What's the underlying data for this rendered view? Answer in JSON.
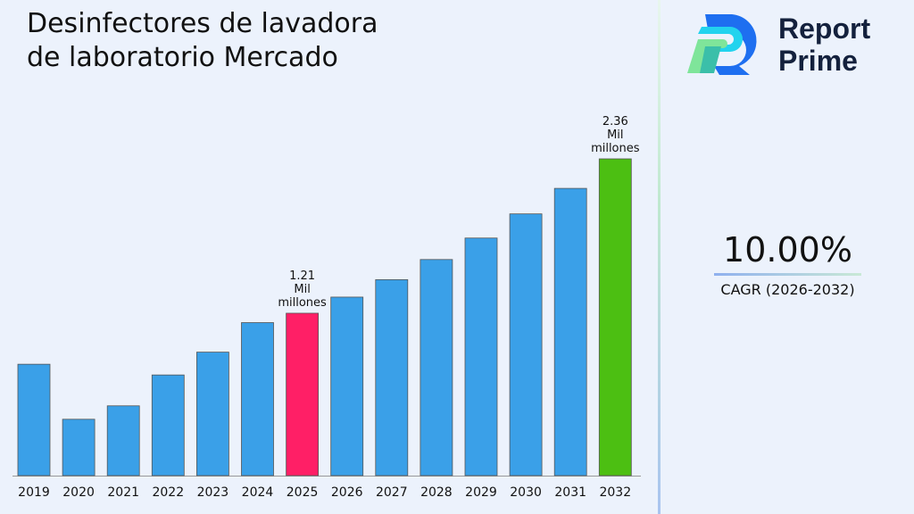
{
  "chart_data": {
    "type": "bar",
    "title": "Desinfectores de lavadora de laboratorio Mercado",
    "categories": [
      "2019",
      "2020",
      "2021",
      "2022",
      "2023",
      "2024",
      "2025",
      "2026",
      "2027",
      "2028",
      "2029",
      "2030",
      "2031",
      "2032"
    ],
    "values": [
      0.83,
      0.42,
      0.52,
      0.75,
      0.92,
      1.14,
      1.21,
      1.33,
      1.46,
      1.61,
      1.77,
      1.95,
      2.14,
      2.36
    ],
    "data_labels": {
      "6": "1.21 Mil millones",
      "13": "2.36 Mil millones"
    },
    "colors": {
      "default": "#3aa0e8",
      "highlight_2025": "#ff1f66",
      "highlight_2032": "#4cbf12"
    },
    "xlabel": "",
    "ylabel": "",
    "ylim": [
      0,
      2.36
    ],
    "grid": false,
    "legend": "none"
  },
  "brand": {
    "name_line1": "Report",
    "name_line2": "Prime"
  },
  "cagr": {
    "value": "10.00%",
    "label": "CAGR (2026-2032)"
  }
}
